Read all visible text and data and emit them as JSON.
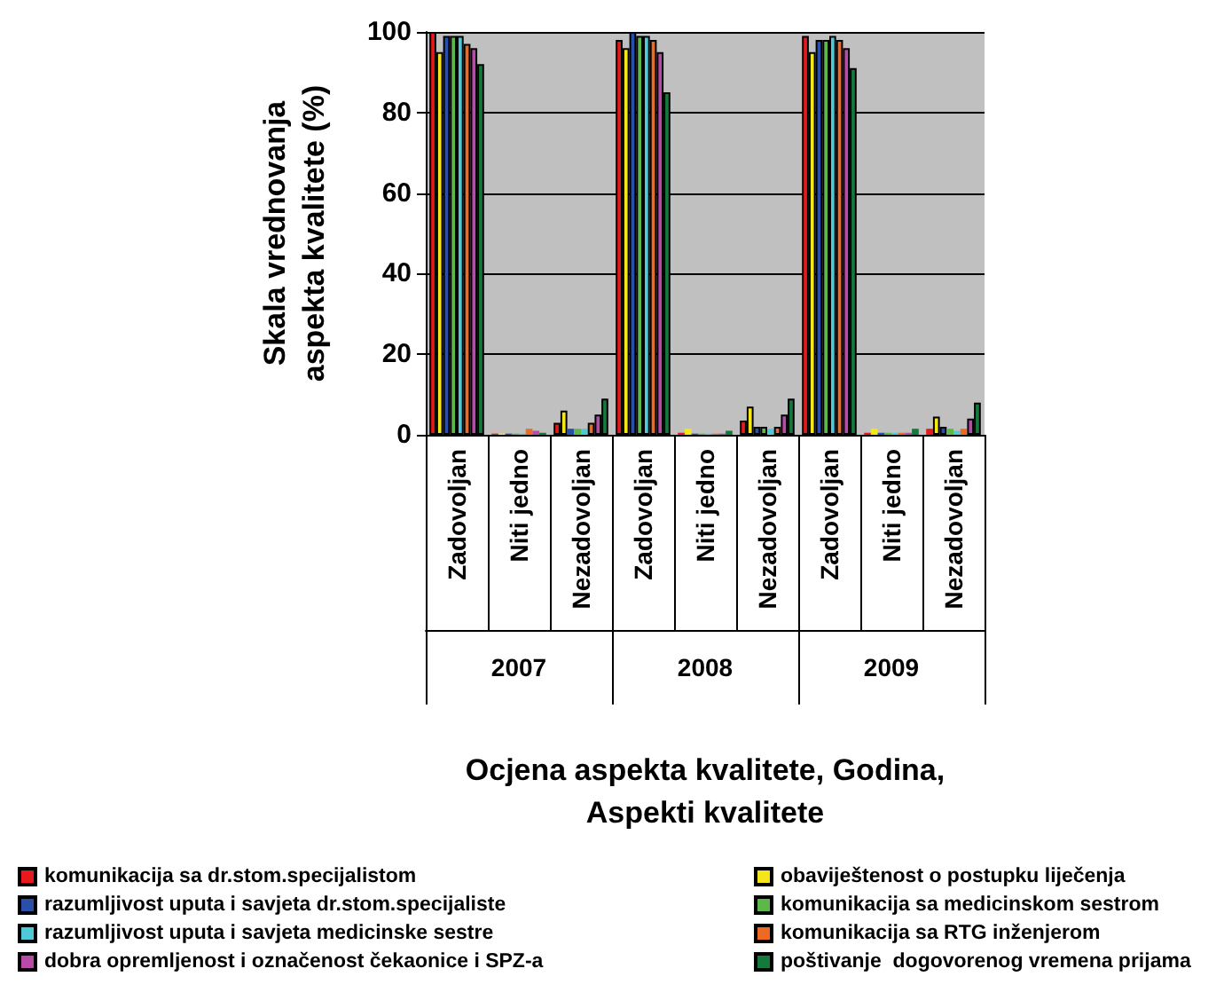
{
  "chart_data": {
    "type": "bar",
    "xlabel": "Ocjena aspekta kvalitete, Godina,\nAspekti kvalitete",
    "ylabel": "Skala vrednovanja\naspekta kvalitete (%)",
    "categories": [
      "Zadovoljan",
      "Niti jedno",
      "Nezadovoljan",
      "Zadovoljan",
      "Niti jedno",
      "Nezadovoljan",
      "Zadovoljan",
      "Niti jedno",
      "Nezadovoljan"
    ],
    "annotations": [
      "2007",
      "2008",
      "2009"
    ],
    "ylim": [
      0,
      100
    ],
    "yticks": [
      0,
      20,
      40,
      60,
      80,
      100
    ],
    "grid": "y",
    "legend": "bottom",
    "series": [
      {
        "name": "komunikacija sa dr.stom.specijalistom",
        "color": "#e8191c",
        "values": [
          100,
          0.3,
          3,
          98,
          0.5,
          3.5,
          99,
          0.5,
          1.5
        ]
      },
      {
        "name": "obaviještenost o postupku liječenja",
        "color": "#f5e61b",
        "values": [
          95,
          0.3,
          6,
          96,
          1.5,
          7,
          95,
          1.5,
          4.5
        ]
      },
      {
        "name": "razumljivost uputa i savjeta dr.stom.specijaliste",
        "color": "#2a4fa8",
        "values": [
          99,
          0.3,
          1.5,
          100,
          0.3,
          2,
          98,
          0.5,
          2
        ]
      },
      {
        "name": "komunikacija sa medicinskom sestrom",
        "color": "#5cb848",
        "values": [
          99,
          0.3,
          1.5,
          99,
          0.3,
          2,
          98,
          0.5,
          1.5
        ]
      },
      {
        "name": "razumljivost uputa i savjeta medicinske sestre",
        "color": "#4fc8d8",
        "values": [
          99,
          0.3,
          1.5,
          99,
          0.3,
          1.5,
          99,
          0.5,
          1
        ]
      },
      {
        "name": "komunikacija sa RTG inženjerom",
        "color": "#ee6a22",
        "values": [
          97,
          1.5,
          3,
          98,
          0.3,
          2,
          98,
          0.5,
          1.5
        ]
      },
      {
        "name": "dobra opremljenost i označenost čekaonice i SPZ-a",
        "color": "#b84aa8",
        "values": [
          96,
          1,
          5,
          95,
          0.3,
          5,
          96,
          0.5,
          4
        ]
      },
      {
        "name": "poštivanje  dogovorenog vremena prijama",
        "color": "#16793c",
        "values": [
          92,
          0.5,
          9,
          85,
          1,
          9,
          91,
          1.5,
          8
        ]
      }
    ]
  }
}
